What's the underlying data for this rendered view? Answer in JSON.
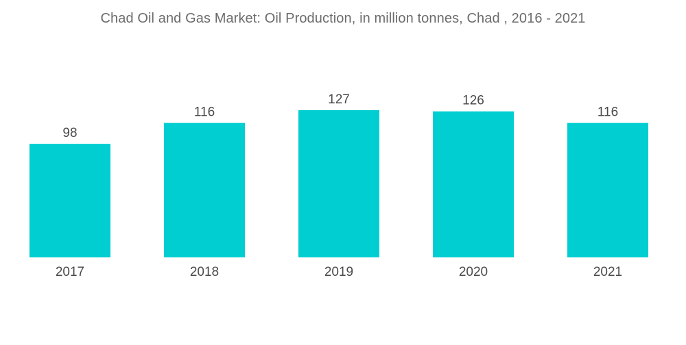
{
  "chart_data": {
    "type": "bar",
    "title": "Chad Oil and Gas Market: Oil Production, in million tonnes, Chad , 2016 - 2021",
    "categories": [
      "2017",
      "2018",
      "2019",
      "2020",
      "2021"
    ],
    "values": [
      98,
      116,
      127,
      126,
      116
    ],
    "xlabel": "",
    "ylabel": "",
    "ylim": [
      0,
      127
    ],
    "grid": false,
    "legend": "none",
    "bar_color": "#00ced1",
    "data_labels": true
  }
}
